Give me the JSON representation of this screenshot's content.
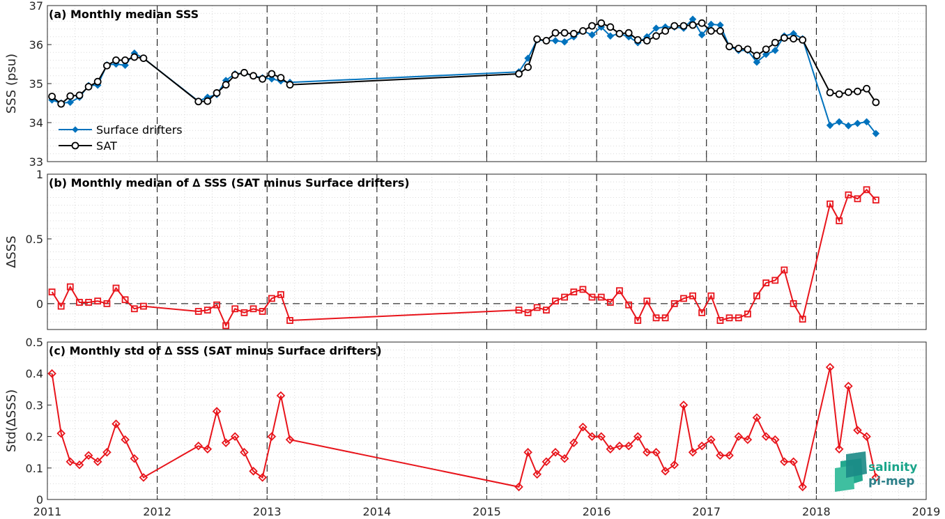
{
  "colors": {
    "drifters": "#0072bd",
    "sat": "#000000",
    "delta": "#e8141b",
    "grid": "#d9d9d9",
    "axis": "#262626"
  },
  "logo": {
    "line1": "salinity",
    "line2": "pi-mep"
  },
  "chart_data": [
    {
      "type": "line",
      "title": "(a) Monthly median SSS",
      "ylabel": "SSS (psu)",
      "xlim": [
        2011,
        2019
      ],
      "ylim": [
        33,
        37
      ],
      "yticks": [
        33,
        34,
        35,
        36,
        37
      ],
      "xticks": [
        2011,
        2012,
        2013,
        2014,
        2015,
        2016,
        2017,
        2018,
        2019
      ],
      "grid": "minor dotted, dashed vertical at year boundaries",
      "legend_position": "bottom-left",
      "series": [
        {
          "name": "Surface drifters",
          "marker": "diamond",
          "x": [
            2011.042,
            2011.125,
            2011.208,
            2011.292,
            2011.375,
            2011.458,
            2011.542,
            2011.625,
            2011.708,
            2011.792,
            2011.875,
            2012.375,
            2012.458,
            2012.542,
            2012.625,
            2012.708,
            2012.792,
            2012.875,
            2012.958,
            2013.042,
            2013.125,
            2013.208,
            2015.292,
            2015.375,
            2015.458,
            2015.542,
            2015.625,
            2015.708,
            2015.792,
            2015.875,
            2015.958,
            2016.042,
            2016.125,
            2016.208,
            2016.292,
            2016.375,
            2016.458,
            2016.542,
            2016.625,
            2016.708,
            2016.792,
            2016.875,
            2016.958,
            2017.042,
            2017.125,
            2017.208,
            2017.292,
            2017.375,
            2017.458,
            2017.542,
            2017.625,
            2017.708,
            2017.792,
            2017.875,
            2018.125,
            2018.208,
            2018.292,
            2018.375,
            2018.458,
            2018.542
          ],
          "y": [
            34.58,
            34.5,
            34.52,
            34.65,
            34.95,
            34.96,
            35.48,
            35.5,
            35.47,
            35.78,
            35.65,
            34.55,
            34.65,
            34.72,
            35.08,
            35.25,
            35.27,
            35.2,
            35.15,
            35.12,
            35.07,
            35.03,
            35.3,
            35.65,
            36.12,
            36.1,
            36.1,
            36.07,
            36.2,
            36.35,
            36.25,
            36.45,
            36.22,
            36.28,
            36.2,
            36.05,
            36.2,
            36.42,
            36.45,
            36.45,
            36.42,
            36.65,
            36.25,
            36.52,
            36.5,
            35.95,
            35.85,
            35.85,
            35.55,
            35.75,
            35.85,
            36.22,
            36.28,
            36.15,
            33.93,
            34.02,
            33.92,
            33.98,
            34.02,
            33.72
          ]
        },
        {
          "name": "SAT",
          "marker": "circle",
          "x": [
            2011.042,
            2011.125,
            2011.208,
            2011.292,
            2011.375,
            2011.458,
            2011.542,
            2011.625,
            2011.708,
            2011.792,
            2011.875,
            2012.375,
            2012.458,
            2012.542,
            2012.625,
            2012.708,
            2012.792,
            2012.875,
            2012.958,
            2013.042,
            2013.125,
            2013.208,
            2015.292,
            2015.375,
            2015.458,
            2015.542,
            2015.625,
            2015.708,
            2015.792,
            2015.875,
            2015.958,
            2016.042,
            2016.125,
            2016.208,
            2016.292,
            2016.375,
            2016.458,
            2016.542,
            2016.625,
            2016.708,
            2016.792,
            2016.875,
            2016.958,
            2017.042,
            2017.125,
            2017.208,
            2017.292,
            2017.375,
            2017.458,
            2017.542,
            2017.625,
            2017.708,
            2017.792,
            2017.875,
            2018.125,
            2018.208,
            2018.292,
            2018.375,
            2018.458,
            2018.542
          ],
          "y": [
            34.67,
            34.48,
            34.68,
            34.7,
            34.92,
            35.05,
            35.46,
            35.6,
            35.6,
            35.68,
            35.65,
            34.54,
            34.55,
            34.76,
            34.97,
            35.22,
            35.28,
            35.2,
            35.12,
            35.25,
            35.15,
            34.97,
            35.25,
            35.42,
            36.14,
            36.1,
            36.3,
            36.3,
            36.28,
            36.35,
            36.48,
            36.55,
            36.45,
            36.28,
            36.3,
            36.12,
            36.1,
            36.22,
            36.35,
            36.48,
            36.48,
            36.5,
            36.55,
            36.35,
            36.35,
            35.95,
            35.9,
            35.88,
            35.72,
            35.88,
            36.05,
            36.17,
            36.15,
            36.12,
            34.77,
            34.73,
            34.78,
            34.8,
            34.87,
            34.52
          ]
        }
      ]
    },
    {
      "type": "line",
      "title": "(b) Monthly median of ∆ SSS (SAT minus Surface drifters)",
      "ylabel": "∆SSS",
      "xlim": [
        2011,
        2019
      ],
      "ylim": [
        -0.2,
        1
      ],
      "yticks": [
        0,
        0.5,
        1
      ],
      "reference_line": 0,
      "series": [
        {
          "name": "",
          "marker": "square",
          "x": [
            2011.042,
            2011.125,
            2011.208,
            2011.292,
            2011.375,
            2011.458,
            2011.542,
            2011.625,
            2011.708,
            2011.792,
            2011.875,
            2012.375,
            2012.458,
            2012.542,
            2012.625,
            2012.708,
            2012.792,
            2012.875,
            2012.958,
            2013.042,
            2013.125,
            2013.208,
            2015.292,
            2015.375,
            2015.458,
            2015.542,
            2015.625,
            2015.708,
            2015.792,
            2015.875,
            2015.958,
            2016.042,
            2016.125,
            2016.208,
            2016.292,
            2016.375,
            2016.458,
            2016.542,
            2016.625,
            2016.708,
            2016.792,
            2016.875,
            2016.958,
            2017.042,
            2017.125,
            2017.208,
            2017.292,
            2017.375,
            2017.458,
            2017.542,
            2017.625,
            2017.708,
            2017.792,
            2017.875,
            2018.125,
            2018.208,
            2018.292,
            2018.375,
            2018.458,
            2018.542
          ],
          "y": [
            0.09,
            -0.02,
            0.13,
            0.01,
            0.01,
            0.02,
            0.0,
            0.12,
            0.03,
            -0.04,
            -0.02,
            -0.06,
            -0.05,
            -0.01,
            -0.17,
            -0.04,
            -0.07,
            -0.04,
            -0.06,
            0.04,
            0.07,
            -0.13,
            -0.05,
            -0.07,
            -0.03,
            -0.05,
            0.02,
            0.05,
            0.09,
            0.11,
            0.05,
            0.05,
            0.01,
            0.1,
            -0.01,
            -0.13,
            0.02,
            -0.11,
            -0.11,
            0.0,
            0.04,
            0.06,
            -0.07,
            0.06,
            -0.13,
            -0.11,
            -0.11,
            -0.08,
            0.06,
            0.16,
            0.18,
            0.26,
            0.0,
            -0.12,
            0.77,
            0.64,
            0.84,
            0.81,
            0.88,
            0.8
          ]
        }
      ]
    },
    {
      "type": "line",
      "title": "(c) Monthly std of ∆ SSS (SAT minus Surface drifters)",
      "ylabel": "Std(∆SSS)",
      "xlim": [
        2011,
        2019
      ],
      "ylim": [
        0,
        0.5
      ],
      "yticks": [
        0,
        0.1,
        0.2,
        0.3,
        0.4,
        0.5
      ],
      "series": [
        {
          "name": "",
          "marker": "diamond",
          "x": [
            2011.042,
            2011.125,
            2011.208,
            2011.292,
            2011.375,
            2011.458,
            2011.542,
            2011.625,
            2011.708,
            2011.792,
            2011.875,
            2012.375,
            2012.458,
            2012.542,
            2012.625,
            2012.708,
            2012.792,
            2012.875,
            2012.958,
            2013.042,
            2013.125,
            2013.208,
            2015.292,
            2015.375,
            2015.458,
            2015.542,
            2015.625,
            2015.708,
            2015.792,
            2015.875,
            2015.958,
            2016.042,
            2016.125,
            2016.208,
            2016.292,
            2016.375,
            2016.458,
            2016.542,
            2016.625,
            2016.708,
            2016.792,
            2016.875,
            2016.958,
            2017.042,
            2017.125,
            2017.208,
            2017.292,
            2017.375,
            2017.458,
            2017.542,
            2017.625,
            2017.708,
            2017.792,
            2017.875,
            2018.125,
            2018.208,
            2018.292,
            2018.375,
            2018.458,
            2018.542
          ],
          "y": [
            0.4,
            0.21,
            0.12,
            0.11,
            0.14,
            0.12,
            0.15,
            0.24,
            0.19,
            0.13,
            0.07,
            0.17,
            0.16,
            0.28,
            0.18,
            0.2,
            0.15,
            0.09,
            0.07,
            0.2,
            0.33,
            0.19,
            0.04,
            0.15,
            0.08,
            0.12,
            0.15,
            0.13,
            0.18,
            0.23,
            0.2,
            0.2,
            0.16,
            0.17,
            0.17,
            0.2,
            0.15,
            0.15,
            0.09,
            0.11,
            0.3,
            0.15,
            0.17,
            0.19,
            0.14,
            0.14,
            0.2,
            0.19,
            0.26,
            0.2,
            0.19,
            0.12,
            0.12,
            0.04,
            0.42,
            0.16,
            0.36,
            0.22,
            0.2,
            0.07
          ]
        }
      ]
    }
  ]
}
